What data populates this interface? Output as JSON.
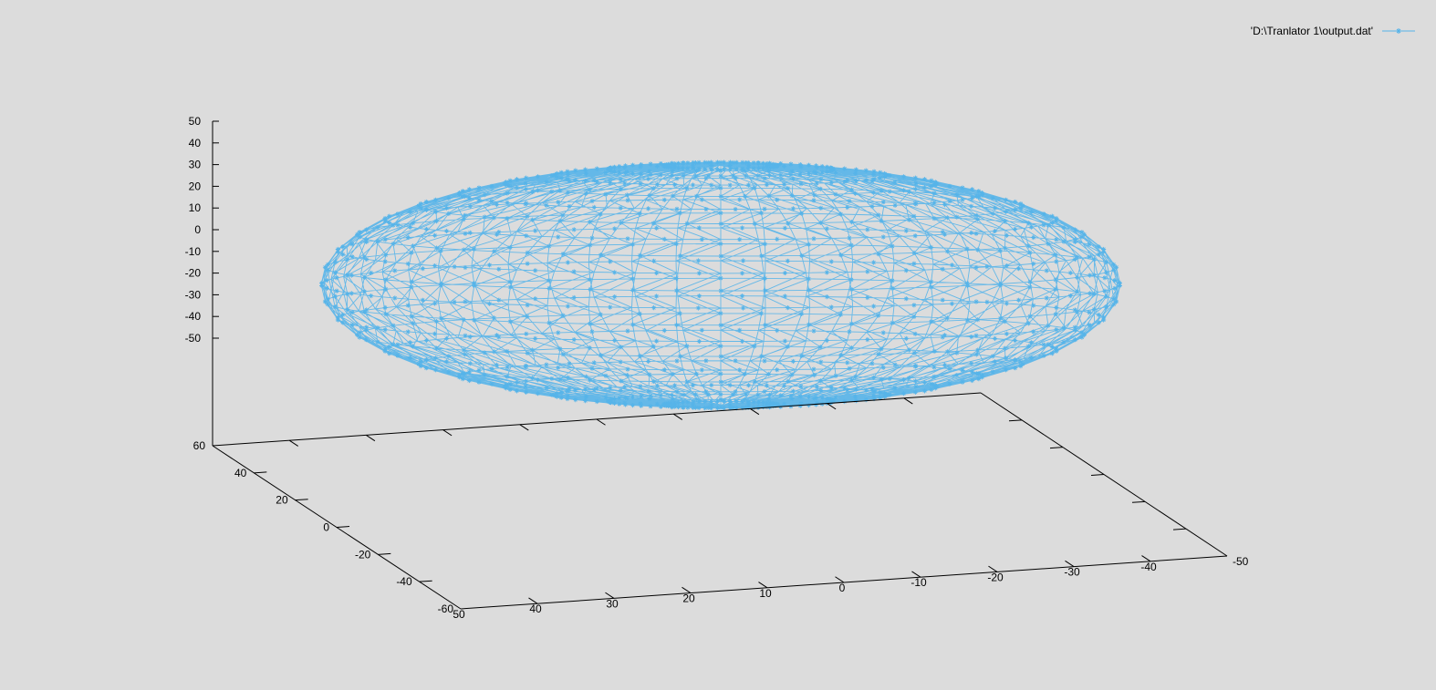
{
  "chart_data": {
    "type": "scatter",
    "subtype": "3d-wireframe-with-points",
    "title": "",
    "legend": {
      "placement": "top-right",
      "entries": [
        {
          "label": "'D:\\Tranlator 1\\output.dat'",
          "color": "#56b4e9",
          "marker": "asterisk-line"
        }
      ]
    },
    "surface": {
      "shape": "oblate spheroid",
      "series_color": "#56b4e9",
      "x_radius": 50,
      "y_radius": 50,
      "z_radius": 25,
      "z_center": -20
    },
    "axes": {
      "x": {
        "range": [
          50,
          -50
        ],
        "tick_labels": [
          "50",
          "40",
          "30",
          "20",
          "10",
          "0",
          "-10",
          "-20",
          "-30",
          "-40",
          "-50"
        ]
      },
      "y": {
        "range": [
          -60,
          60
        ],
        "tick_labels": [
          "-60",
          "-40",
          "-20",
          "0",
          "20",
          "40",
          "60"
        ]
      },
      "z": {
        "range": [
          -50,
          50
        ],
        "tick_labels": [
          "50",
          "40",
          "30",
          "20",
          "10",
          "0",
          "-10",
          "-20",
          "-30",
          "-40",
          "-50"
        ]
      }
    },
    "grid": false
  }
}
